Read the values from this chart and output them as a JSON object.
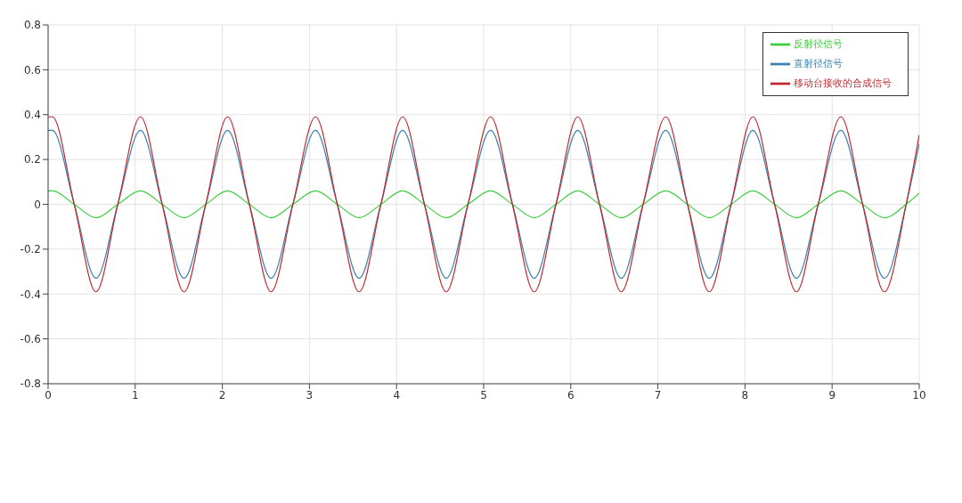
{
  "chart_data": {
    "type": "line",
    "x": [
      0,
      0.05,
      0.3,
      0.55,
      0.8,
      1.06,
      1.31,
      1.56,
      1.81,
      2.06,
      2.31,
      2.56,
      2.81,
      3.07,
      3.32,
      3.57,
      3.82,
      4.07,
      4.32,
      4.57,
      4.82,
      5.08,
      5.33,
      5.58,
      5.83,
      6.08,
      6.33,
      6.58,
      6.83,
      7.09,
      7.34,
      7.59,
      7.84,
      8.09,
      8.34,
      8.59,
      8.84,
      9.1,
      9.35,
      9.6,
      9.85,
      10
    ],
    "series": [
      {
        "name": "直射径信号",
        "color": "#3b82b0",
        "values": [
          0.33,
          0.33,
          0,
          -0.33,
          0,
          0.33,
          0,
          -0.33,
          0,
          0.33,
          0,
          -0.33,
          0,
          0.33,
          0,
          -0.33,
          0,
          0.33,
          0,
          -0.33,
          0,
          0.33,
          0,
          -0.33,
          0,
          0.33,
          0,
          -0.33,
          0,
          0.33,
          0,
          -0.33,
          0,
          0.33,
          0,
          -0.33,
          0,
          0.33,
          0,
          -0.33,
          0,
          0.27
        ]
      },
      {
        "name": "反射径信号",
        "color": "#3ccc3c",
        "values": [
          0.06,
          0.06,
          0,
          -0.06,
          0,
          0.06,
          0,
          -0.06,
          0,
          0.06,
          0,
          -0.06,
          0,
          0.06,
          0,
          -0.06,
          0,
          0.06,
          0,
          -0.06,
          0,
          0.06,
          0,
          -0.06,
          0,
          0.06,
          0,
          -0.06,
          0,
          0.06,
          0,
          -0.06,
          0,
          0.06,
          0,
          -0.06,
          0,
          0.06,
          0,
          -0.06,
          0,
          0.05
        ]
      },
      {
        "name": "移动台接收的合成信号",
        "color": "#c0282d",
        "values": [
          0.39,
          0.39,
          0,
          -0.39,
          0,
          0.39,
          0,
          -0.39,
          0,
          0.39,
          0,
          -0.39,
          0,
          0.39,
          0,
          -0.39,
          0,
          0.39,
          0,
          -0.39,
          0,
          0.39,
          0,
          -0.39,
          0,
          0.39,
          0,
          -0.39,
          0,
          0.39,
          0,
          -0.39,
          0,
          0.39,
          0,
          -0.39,
          0,
          0.39,
          0,
          -0.39,
          0,
          0.31
        ]
      }
    ],
    "xlim": [
      0,
      10
    ],
    "xticks": [
      0,
      1,
      2,
      3,
      4,
      5,
      6,
      7,
      8,
      9,
      10
    ],
    "ylim": [
      -0.8,
      0.8
    ],
    "yticks": [
      -0.8,
      -0.6,
      -0.4,
      -0.2,
      0,
      0.2,
      0.4,
      0.6,
      0.8
    ],
    "grid": true,
    "legend": "top right",
    "marker": "none",
    "line_style": "solid"
  }
}
